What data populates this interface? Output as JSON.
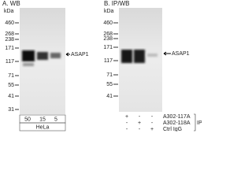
{
  "panels": [
    {
      "title": "A. WB",
      "unit": "kDa",
      "markers": [
        "460",
        "268",
        "238",
        "171",
        "117",
        "71",
        "55",
        "41",
        "31"
      ],
      "target": "ASAP1",
      "lanes": [
        "50",
        "15",
        "5"
      ],
      "sample": "HeLa"
    },
    {
      "title": "B. IP/WB",
      "unit": "kDa",
      "markers": [
        "460",
        "268",
        "238",
        "171",
        "117",
        "71",
        "55",
        "41"
      ],
      "target": "ASAP1",
      "rows": [
        {
          "label": "A302-117A",
          "signs": [
            "+",
            "-",
            "-"
          ]
        },
        {
          "label": "A302-118A",
          "signs": [
            "-",
            "+",
            "-"
          ]
        },
        {
          "label": "Ctrl IgG",
          "signs": [
            "-",
            "-",
            "+"
          ]
        }
      ],
      "group": "IP"
    }
  ]
}
